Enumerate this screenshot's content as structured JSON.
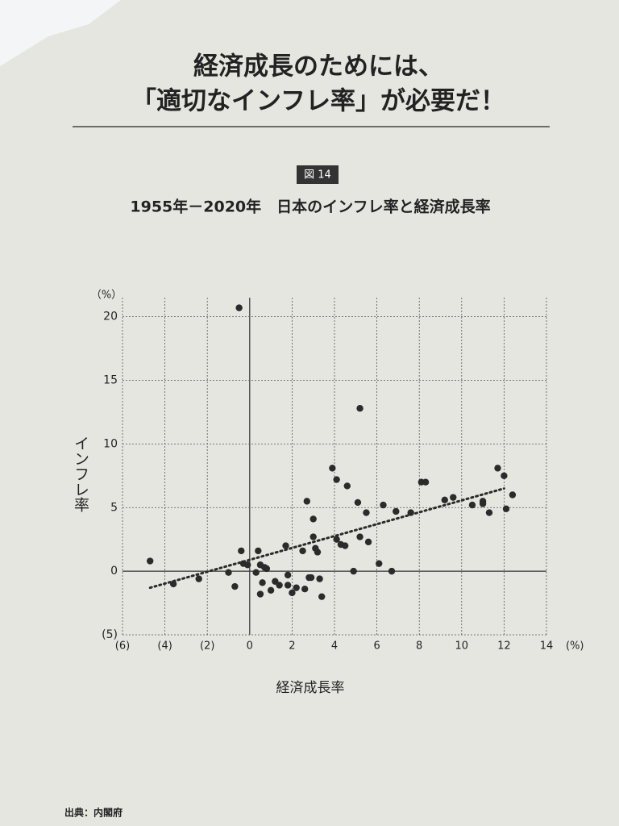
{
  "page": {
    "headline": [
      "経済成長のためには、",
      "「適切なインフレ率」が必要だ！"
    ],
    "figure_label": "図 14",
    "source": "出典：内閣府"
  },
  "chart_data": {
    "type": "scatter",
    "title": "1955年－2020年　日本のインフレ率と経済成長率",
    "x_label": "経済成長率",
    "y_label": "インフレ率",
    "x_unit": "(%)",
    "y_unit": "（%）",
    "color": "#2b2b2b",
    "grid": true,
    "xlim": [
      -6,
      14
    ],
    "ylim": [
      -5,
      21.5
    ],
    "xticks": [
      {
        "value": -6,
        "label": "(6)"
      },
      {
        "value": -4,
        "label": "(4)"
      },
      {
        "value": -2,
        "label": "(2)"
      },
      0,
      2,
      4,
      6,
      8,
      10,
      12,
      14
    ],
    "yticks": [
      {
        "value": -5,
        "label": "(5)"
      },
      0,
      5,
      10,
      15,
      20
    ],
    "x": [
      -4.7,
      -3.6,
      -2.4,
      -1.0,
      -0.7,
      -0.5,
      -0.4,
      -0.3,
      -0.1,
      0.3,
      0.4,
      0.5,
      0.7,
      0.8,
      0.5,
      0.6,
      1.0,
      1.2,
      1.4,
      1.7,
      1.8,
      1.8,
      2.0,
      2.2,
      2.5,
      2.6,
      2.7,
      2.8,
      3.0,
      3.0,
      3.1,
      3.2,
      2.9,
      3.3,
      3.4,
      3.9,
      4.1,
      4.1,
      4.3,
      4.5,
      4.6,
      4.9,
      5.1,
      5.2,
      5.2,
      5.5,
      5.6,
      6.1,
      6.3,
      6.7,
      6.9,
      7.6,
      8.1,
      8.3,
      9.2,
      9.6,
      10.5,
      11.0,
      11.0,
      11.3,
      11.7,
      12.0,
      12.1,
      12.4
    ],
    "values": [
      0.8,
      -1.0,
      -0.6,
      -0.1,
      -1.2,
      20.7,
      1.6,
      0.6,
      0.5,
      -0.1,
      1.6,
      0.5,
      0.3,
      0.2,
      -1.8,
      -0.9,
      -1.5,
      -0.8,
      -1.1,
      2.0,
      -0.3,
      -1.1,
      -1.7,
      -1.3,
      1.6,
      -1.4,
      5.5,
      -0.5,
      2.7,
      4.1,
      1.8,
      1.5,
      -0.5,
      -0.6,
      -2.0,
      8.1,
      7.2,
      2.5,
      2.1,
      2.0,
      6.7,
      0.0,
      5.4,
      12.8,
      2.7,
      4.6,
      2.3,
      0.6,
      5.2,
      0.0,
      4.7,
      4.6,
      7.0,
      7.0,
      5.6,
      5.8,
      5.2,
      5.5,
      5.3,
      4.6,
      8.1,
      7.5,
      4.9,
      6.0
    ],
    "trendline": {
      "x": [
        -4.7,
        12.0
      ],
      "values": [
        -1.3,
        6.5
      ]
    }
  }
}
